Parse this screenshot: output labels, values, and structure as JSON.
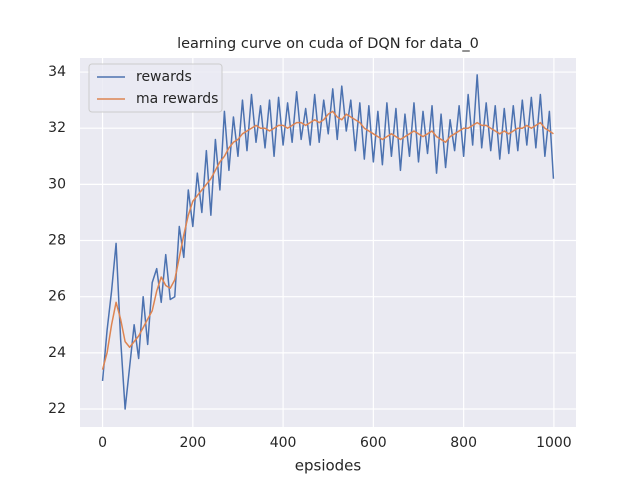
{
  "chart_data": {
    "type": "line",
    "title": "learning curve on cuda of DQN for data_0",
    "xlabel": "epsiodes",
    "x": [
      0,
      10,
      20,
      30,
      40,
      50,
      60,
      70,
      80,
      90,
      100,
      110,
      120,
      130,
      140,
      150,
      160,
      170,
      180,
      190,
      200,
      210,
      220,
      230,
      240,
      250,
      260,
      270,
      280,
      290,
      300,
      310,
      320,
      330,
      340,
      350,
      360,
      370,
      380,
      390,
      400,
      410,
      420,
      430,
      440,
      450,
      460,
      470,
      480,
      490,
      500,
      510,
      520,
      530,
      540,
      550,
      560,
      570,
      580,
      590,
      600,
      610,
      620,
      630,
      640,
      650,
      660,
      670,
      680,
      690,
      700,
      710,
      720,
      730,
      740,
      750,
      760,
      770,
      780,
      790,
      800,
      810,
      820,
      830,
      840,
      850,
      860,
      870,
      880,
      890,
      900,
      910,
      920,
      930,
      940,
      950,
      960,
      970,
      980,
      990,
      999
    ],
    "series": [
      {
        "name": "rewards",
        "color": "#4c72b0",
        "values": [
          23.0,
          24.8,
          26.2,
          27.9,
          24.5,
          22.0,
          23.5,
          25.0,
          23.8,
          26.0,
          24.3,
          26.5,
          27.0,
          25.8,
          27.5,
          25.9,
          26.0,
          28.5,
          27.4,
          29.8,
          28.5,
          30.4,
          29.0,
          31.2,
          28.9,
          31.6,
          29.8,
          32.6,
          30.5,
          32.4,
          31.0,
          33.0,
          31.2,
          33.2,
          31.5,
          32.8,
          31.3,
          33.0,
          31.0,
          33.1,
          31.4,
          32.9,
          31.5,
          33.3,
          31.6,
          32.7,
          31.4,
          33.2,
          31.5,
          33.0,
          31.8,
          33.4,
          31.6,
          33.5,
          31.9,
          33.0,
          31.2,
          32.9,
          30.9,
          32.8,
          30.8,
          32.6,
          30.7,
          32.9,
          31.0,
          32.7,
          30.5,
          32.5,
          31.0,
          32.9,
          30.8,
          32.6,
          31.1,
          32.8,
          30.4,
          32.5,
          30.6,
          32.3,
          31.2,
          32.8,
          31.0,
          33.2,
          31.4,
          33.9,
          31.3,
          32.9,
          31.2,
          32.8,
          30.9,
          32.7,
          31.1,
          32.8,
          31.2,
          33.0,
          31.4,
          33.1,
          31.3,
          33.2,
          31.0,
          32.6,
          30.2
        ]
      },
      {
        "name": "ma rewards",
        "color": "#dd8452",
        "values": [
          23.4,
          24.0,
          25.0,
          25.8,
          25.2,
          24.4,
          24.2,
          24.4,
          24.6,
          24.9,
          25.2,
          25.5,
          26.2,
          26.7,
          26.4,
          26.3,
          26.6,
          27.4,
          28.2,
          28.9,
          29.4,
          29.6,
          29.8,
          30.0,
          30.2,
          30.5,
          30.8,
          31.0,
          31.3,
          31.5,
          31.6,
          31.8,
          31.9,
          32.0,
          32.1,
          32.0,
          32.0,
          31.9,
          32.0,
          32.1,
          32.1,
          32.0,
          32.1,
          32.2,
          32.2,
          32.1,
          32.2,
          32.3,
          32.2,
          32.3,
          32.5,
          32.6,
          32.4,
          32.3,
          32.5,
          32.4,
          32.3,
          32.2,
          32.0,
          31.9,
          31.8,
          31.7,
          31.6,
          31.7,
          31.8,
          31.7,
          31.6,
          31.7,
          31.8,
          31.9,
          31.8,
          31.7,
          31.8,
          31.9,
          31.7,
          31.6,
          31.5,
          31.7,
          31.8,
          31.9,
          32.0,
          32.0,
          32.1,
          32.2,
          32.1,
          32.1,
          32.0,
          31.9,
          31.8,
          31.9,
          31.8,
          31.9,
          32.0,
          32.0,
          32.1,
          32.0,
          32.1,
          32.2,
          32.0,
          31.9,
          31.8
        ]
      }
    ],
    "xlim": [
      -49.95,
      1048.95
    ],
    "ylim": [
      21.36,
      34.5
    ],
    "xticks": [
      0,
      200,
      400,
      600,
      800,
      1000
    ],
    "yticks": [
      22,
      24,
      26,
      28,
      30,
      32,
      34
    ],
    "grid": true,
    "legend": "upper left"
  }
}
